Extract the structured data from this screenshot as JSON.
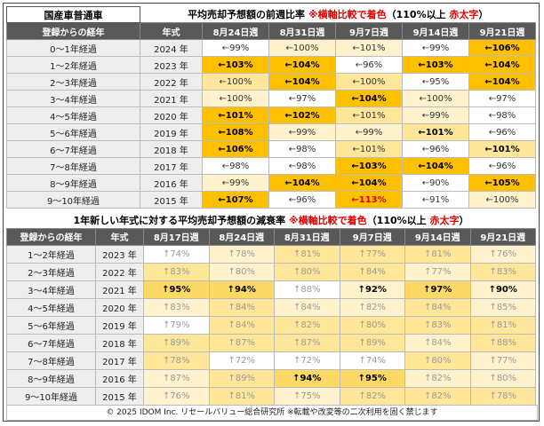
{
  "top": {
    "label": "国産車普通車",
    "title": [
      {
        "text": "平均売却予想額の前週比率 "
      },
      {
        "text": "※横軸比較で着色",
        "color": "#e00000"
      },
      {
        "text": "（110%以上 "
      },
      {
        "text": "赤太字",
        "color": "#e00000"
      },
      {
        "text": "）"
      }
    ],
    "header": [
      "登録からの経年",
      "年式",
      "8月24日週",
      "8月31日週",
      "9月7日週",
      "9月14日週",
      "9月21日週"
    ],
    "rows": [
      {
        "age": "0〜1年経過",
        "year": "2024 年",
        "cells": [
          {
            "text": "←99%",
            "bg": "#ffffff"
          },
          {
            "text": "←100%",
            "bg": "#fff2cc"
          },
          {
            "text": "←101%",
            "bg": "#fff2cc"
          },
          {
            "text": "←99%",
            "bg": "#ffffff"
          },
          {
            "text": "←106%",
            "bg": "#ffc000",
            "fg": "#000000"
          }
        ]
      },
      {
        "age": "1〜2年経過",
        "year": "2023 年",
        "cells": [
          {
            "text": "←103%",
            "bg": "#ffc000",
            "fg": "#000000"
          },
          {
            "text": "←104%",
            "bg": "#ffc000",
            "fg": "#000000"
          },
          {
            "text": "←96%",
            "bg": "#ffffff"
          },
          {
            "text": "←103%",
            "bg": "#ffc000",
            "fg": "#000000"
          },
          {
            "text": "←104%",
            "bg": "#ffc000",
            "fg": "#000000"
          }
        ]
      },
      {
        "age": "2〜3年経過",
        "year": "2022 年",
        "cells": [
          {
            "text": "←100%",
            "bg": "#ffe699"
          },
          {
            "text": "←104%",
            "bg": "#ffc000",
            "fg": "#000000"
          },
          {
            "text": "←100%",
            "bg": "#ffe699"
          },
          {
            "text": "←95%",
            "bg": "#ffffff"
          },
          {
            "text": "←104%",
            "bg": "#ffc000",
            "fg": "#000000"
          }
        ]
      },
      {
        "age": "3〜4年経過",
        "year": "2021 年",
        "cells": [
          {
            "text": "←100%",
            "bg": "#fff2cc"
          },
          {
            "text": "←97%",
            "bg": "#ffffff"
          },
          {
            "text": "←104%",
            "bg": "#ffc000",
            "fg": "#000000"
          },
          {
            "text": "←100%",
            "bg": "#fff2cc"
          },
          {
            "text": "←97%",
            "bg": "#ffffff"
          }
        ]
      },
      {
        "age": "4〜5年経過",
        "year": "2020 年",
        "cells": [
          {
            "text": "←101%",
            "bg": "#ffc000",
            "fg": "#000000"
          },
          {
            "text": "←102%",
            "bg": "#ffc000",
            "fg": "#000000"
          },
          {
            "text": "←101%",
            "bg": "#ffe699"
          },
          {
            "text": "←99%",
            "bg": "#fff2cc"
          },
          {
            "text": "←98%",
            "bg": "#ffffff"
          }
        ]
      },
      {
        "age": "5〜6年経過",
        "year": "2019 年",
        "cells": [
          {
            "text": "←108%",
            "bg": "#ffc000",
            "fg": "#000000"
          },
          {
            "text": "←99%",
            "bg": "#fff2cc"
          },
          {
            "text": "←99%",
            "bg": "#fff2cc"
          },
          {
            "text": "←101%",
            "bg": "#ffe699",
            "fg": "#000000"
          },
          {
            "text": "←96%",
            "bg": "#ffffff"
          }
        ]
      },
      {
        "age": "6〜7年経過",
        "year": "2018 年",
        "cells": [
          {
            "text": "←106%",
            "bg": "#ffc000",
            "fg": "#000000"
          },
          {
            "text": "←98%",
            "bg": "#ffffff"
          },
          {
            "text": "←101%",
            "bg": "#ffe699"
          },
          {
            "text": "←96%",
            "bg": "#ffffff"
          },
          {
            "text": "←101%",
            "bg": "#ffe699",
            "fg": "#000000"
          }
        ]
      },
      {
        "age": "7〜8年経過",
        "year": "2017 年",
        "cells": [
          {
            "text": "←98%",
            "bg": "#ffffff"
          },
          {
            "text": "←98%",
            "bg": "#ffffff"
          },
          {
            "text": "←103%",
            "bg": "#ffc000",
            "fg": "#000000"
          },
          {
            "text": "←104%",
            "bg": "#ffc000",
            "fg": "#000000"
          },
          {
            "text": "←96%",
            "bg": "#ffffff"
          }
        ]
      },
      {
        "age": "8〜9年経過",
        "year": "2016 年",
        "cells": [
          {
            "text": "←99%",
            "bg": "#fff2cc"
          },
          {
            "text": "←104%",
            "bg": "#ffc000",
            "fg": "#000000"
          },
          {
            "text": "←104%",
            "bg": "#ffc000",
            "fg": "#000000"
          },
          {
            "text": "←90%",
            "bg": "#ffffff"
          },
          {
            "text": "←105%",
            "bg": "#ffc000",
            "fg": "#000000"
          }
        ]
      },
      {
        "age": "9〜10年経過",
        "year": "2015 年",
        "cells": [
          {
            "text": "←107%",
            "bg": "#ffc000",
            "fg": "#000000"
          },
          {
            "text": "←96%",
            "bg": "#ffffff"
          },
          {
            "text": "←113%",
            "bg": "#ffc000",
            "fg": "#e00000"
          },
          {
            "text": "←91%",
            "bg": "#ffffff"
          },
          {
            "text": "←100%",
            "bg": "#fff2cc"
          }
        ]
      }
    ]
  },
  "bottom": {
    "title": [
      {
        "text": "1年新しい年式に対する平均売却予想額の減衰率 "
      },
      {
        "text": "※横軸比較で着色",
        "color": "#e00000"
      },
      {
        "text": "（110%以上 "
      },
      {
        "text": "赤太字",
        "color": "#e00000"
      },
      {
        "text": "）"
      }
    ],
    "header": [
      "登録からの経年",
      "年式",
      "8月17日週",
      "8月24日週",
      "8月31日週",
      "9月7日週",
      "9月14日週",
      "9月21日週"
    ],
    "rows": [
      {
        "age": "1〜2年経過",
        "year": "2023 年",
        "cells": [
          {
            "text": "↑74%",
            "bg": "#ffffff"
          },
          {
            "text": "↑78%",
            "bg": "#fff2cc"
          },
          {
            "text": "↑81%",
            "bg": "#ffe699"
          },
          {
            "text": "↑77%",
            "bg": "#ffe699"
          },
          {
            "text": "↑81%",
            "bg": "#ffe699"
          },
          {
            "text": "↑76%",
            "bg": "#fff2cc"
          }
        ]
      },
      {
        "age": "2〜3年経過",
        "year": "2022 年",
        "cells": [
          {
            "text": "↑83%",
            "bg": "#ffe699"
          },
          {
            "text": "↑80%",
            "bg": "#fff2cc"
          },
          {
            "text": "↑80%",
            "bg": "#ffe699"
          },
          {
            "text": "↑84%",
            "bg": "#ffe699"
          },
          {
            "text": "↑77%",
            "bg": "#fff2cc"
          },
          {
            "text": "↑83%",
            "bg": "#ffe699"
          }
        ]
      },
      {
        "age": "3〜4年経過",
        "year": "2021 年",
        "cells": [
          {
            "text": "↑95%",
            "bg": "#ffd966",
            "fg": "#000000"
          },
          {
            "text": "↑94%",
            "bg": "#ffd966",
            "fg": "#000000"
          },
          {
            "text": "↑88%",
            "bg": "#ffffff"
          },
          {
            "text": "↑92%",
            "bg": "#fff2cc",
            "fg": "#000000"
          },
          {
            "text": "↑97%",
            "bg": "#ffd966",
            "fg": "#000000"
          },
          {
            "text": "↑90%",
            "bg": "#fff2cc",
            "fg": "#000000"
          }
        ]
      },
      {
        "age": "4〜5年経過",
        "year": "2020 年",
        "cells": [
          {
            "text": "↑83%",
            "bg": "#fff2cc"
          },
          {
            "text": "↑84%",
            "bg": "#ffe699"
          },
          {
            "text": "↑84%",
            "bg": "#fff2cc"
          },
          {
            "text": "↑82%",
            "bg": "#fff2cc"
          },
          {
            "text": "↑84%",
            "bg": "#ffe699"
          },
          {
            "text": "↑85%",
            "bg": "#fff2cc"
          }
        ]
      },
      {
        "age": "5〜6年経過",
        "year": "2019 年",
        "cells": [
          {
            "text": "↑79%",
            "bg": "#ffffff"
          },
          {
            "text": "↑84%",
            "bg": "#ffe699"
          },
          {
            "text": "↑82%",
            "bg": "#ffe699"
          },
          {
            "text": "↑80%",
            "bg": "#ffe699"
          },
          {
            "text": "↑83%",
            "bg": "#ffe699"
          },
          {
            "text": "↑81%",
            "bg": "#ffe699"
          }
        ]
      },
      {
        "age": "6〜7年経過",
        "year": "2018 年",
        "cells": [
          {
            "text": "↑89%",
            "bg": "#ffe699"
          },
          {
            "text": "↑87%",
            "bg": "#ffe699"
          },
          {
            "text": "↑87%",
            "bg": "#ffe699"
          },
          {
            "text": "↑89%",
            "bg": "#ffe699"
          },
          {
            "text": "↑84%",
            "bg": "#fff2cc"
          },
          {
            "text": "↑88%",
            "bg": "#ffe699"
          }
        ]
      },
      {
        "age": "7〜8年経過",
        "year": "2017 年",
        "cells": [
          {
            "text": "↑78%",
            "bg": "#ffe699"
          },
          {
            "text": "↑72%",
            "bg": "#ffffff"
          },
          {
            "text": "↑72%",
            "bg": "#ffffff"
          },
          {
            "text": "↑74%",
            "bg": "#ffffff"
          },
          {
            "text": "↑80%",
            "bg": "#ffe699"
          },
          {
            "text": "↑77%",
            "bg": "#fff2cc"
          }
        ]
      },
      {
        "age": "8〜9年経過",
        "year": "2016 年",
        "cells": [
          {
            "text": "↑87%",
            "bg": "#fff2cc"
          },
          {
            "text": "↑89%",
            "bg": "#ffe699"
          },
          {
            "text": "↑94%",
            "bg": "#ffd966",
            "fg": "#000000"
          },
          {
            "text": "↑95%",
            "bg": "#ffd966",
            "fg": "#000000"
          },
          {
            "text": "↑82%",
            "bg": "#fff2cc"
          },
          {
            "text": "↑80%",
            "bg": "#fff2cc"
          }
        ]
      },
      {
        "age": "9〜10年経過",
        "year": "2015 年",
        "cells": [
          {
            "text": "↑76%",
            "bg": "#fff2cc"
          },
          {
            "text": "↑81%",
            "bg": "#ffe699"
          },
          {
            "text": "↑75%",
            "bg": "#fff2cc"
          },
          {
            "text": "↑82%",
            "bg": "#ffe699"
          },
          {
            "text": "↑82%",
            "bg": "#ffe699"
          },
          {
            "text": "↑78%",
            "bg": "#ffe699"
          }
        ]
      }
    ]
  },
  "footer": "© 2025 IDOM Inc. リセールバリュー総合研究所 ※転載や改変等の二次利用を固く禁じます"
}
